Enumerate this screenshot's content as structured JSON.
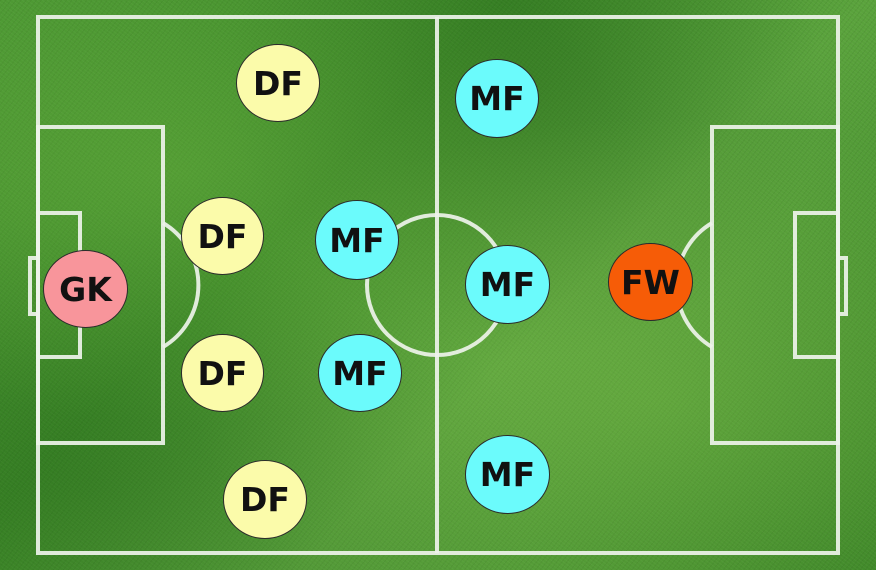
{
  "colors": {
    "gk": "#f8959b",
    "df": "#fbfbaa",
    "mf": "#6bfbfc",
    "fw": "#f65c07",
    "line": "#eef3ea"
  },
  "players": {
    "gk": {
      "label": "GK"
    },
    "df1": {
      "label": "DF"
    },
    "df2": {
      "label": "DF"
    },
    "df3": {
      "label": "DF"
    },
    "df4": {
      "label": "DF"
    },
    "mf1": {
      "label": "MF"
    },
    "mf2": {
      "label": "MF"
    },
    "mf3": {
      "label": "MF"
    },
    "mf4": {
      "label": "MF"
    },
    "mf5": {
      "label": "MF"
    },
    "fw": {
      "label": "FW"
    }
  }
}
